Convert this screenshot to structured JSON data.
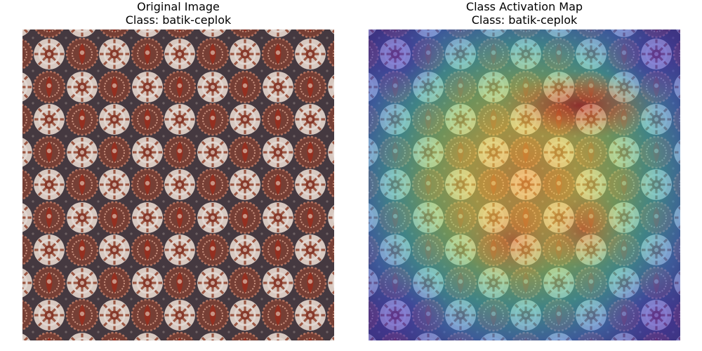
{
  "panels": [
    {
      "title": "Original Image",
      "subtitle": "Class: batik-ceplok"
    },
    {
      "title": "Class Activation Map",
      "subtitle": "Class: batik-ceplok"
    }
  ]
}
